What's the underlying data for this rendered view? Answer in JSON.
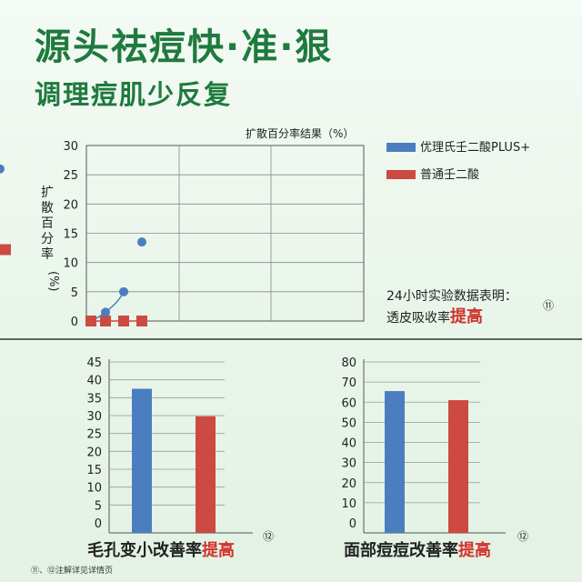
{
  "header": {
    "title": "源头祛痘快·准·狠",
    "subtitle": "调理痘肌少反复"
  },
  "chart_data": [
    {
      "type": "line",
      "title": "扩散百分率结果（%）",
      "ylabel": "扩散百分率",
      "yunit": "(%)",
      "ylim": [
        0,
        30
      ],
      "yticks": [
        0,
        5,
        10,
        15,
        20,
        25,
        30
      ],
      "grid": true,
      "legend_position": "top-right",
      "series": [
        {
          "name": "优理氏壬二酸PLUS+",
          "color": "#4a7ec0",
          "marker": "circle",
          "x": [
            0,
            1,
            2,
            3,
            6
          ],
          "y": [
            0,
            1.5,
            5,
            13.5,
            26
          ]
        },
        {
          "name": "普通壬二酸",
          "color": "#cc4a42",
          "marker": "square",
          "x": [
            0,
            1,
            2,
            3,
            6
          ],
          "y": [
            0,
            0,
            0,
            0,
            12.2
          ]
        }
      ],
      "annotation": {
        "line1": "24小时实验数据表明：",
        "line2_prefix": "透皮吸收率",
        "line2_highlight": "提高",
        "note": "⑪"
      }
    },
    {
      "type": "bar",
      "ylim": [
        0,
        45
      ],
      "yticks": [
        0,
        5,
        10,
        15,
        20,
        25,
        30,
        35,
        40,
        45
      ],
      "grid": true,
      "series": [
        {
          "color": "#4a7ec0",
          "value": 37.5
        },
        {
          "color": "#cc4a42",
          "value": 29.8
        }
      ],
      "caption_prefix": "毛孔变小改善率",
      "caption_highlight": "提高",
      "note": "⑫"
    },
    {
      "type": "bar",
      "ylim": [
        0,
        80
      ],
      "yticks": [
        0,
        10,
        20,
        30,
        40,
        50,
        60,
        70,
        80
      ],
      "grid": true,
      "series": [
        {
          "color": "#4a7ec0",
          "value": 65.5
        },
        {
          "color": "#cc4a42",
          "value": 61
        }
      ],
      "caption_prefix": "面部痘痘改善率",
      "caption_highlight": "提高",
      "note": "⑫"
    }
  ],
  "footnote": "⑪、⑫注解详见详情页"
}
